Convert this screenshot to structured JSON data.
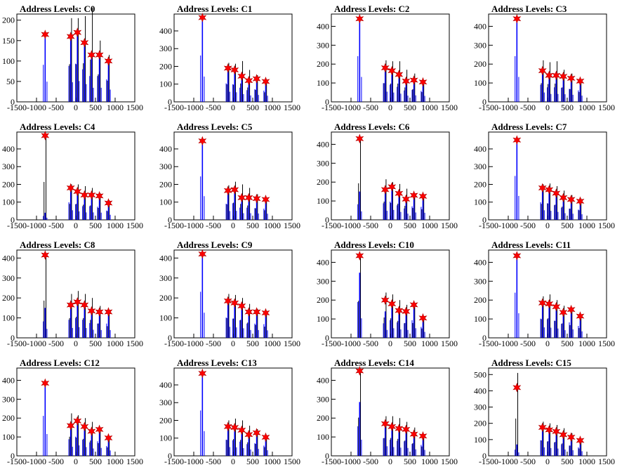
{
  "chart_data": [
    {
      "type": "histogram",
      "title": "Address Levels: C0",
      "xlim": [
        -1500,
        1500
      ],
      "ylim": [
        0,
        215
      ],
      "xticks": [
        -1500,
        -1000,
        -500,
        0,
        500,
        1000,
        1500
      ],
      "yticks": [
        0,
        50,
        100,
        150,
        200
      ],
      "peaks": [
        {
          "x": -780,
          "blue": 165,
          "black": 0,
          "star": 165
        },
        {
          "x": -130,
          "blue": 160,
          "black": 205,
          "star": 160
        },
        {
          "x": 40,
          "blue": 170,
          "black": 205,
          "star": 170
        },
        {
          "x": 220,
          "blue": 145,
          "black": 210,
          "star": 145
        },
        {
          "x": 400,
          "blue": 115,
          "black": 230,
          "star": 115
        },
        {
          "x": 600,
          "blue": 115,
          "black": 150,
          "star": 115
        },
        {
          "x": 830,
          "blue": 100,
          "black": 115,
          "star": 100
        }
      ]
    },
    {
      "type": "histogram",
      "title": "Address Levels: C1",
      "xlim": [
        -1500,
        1500
      ],
      "ylim": [
        0,
        495
      ],
      "xticks": [
        -1500,
        -1000,
        -500,
        0,
        500,
        1000,
        1500
      ],
      "yticks": [
        0,
        100,
        200,
        300,
        400
      ],
      "peaks": [
        {
          "x": -780,
          "blue": 475,
          "black": 0,
          "star": 475
        },
        {
          "x": -130,
          "blue": 190,
          "black": 220,
          "star": 190
        },
        {
          "x": 40,
          "blue": 180,
          "black": 215,
          "star": 180
        },
        {
          "x": 220,
          "blue": 145,
          "black": 230,
          "star": 145
        },
        {
          "x": 400,
          "blue": 120,
          "black": 180,
          "star": 120
        },
        {
          "x": 600,
          "blue": 130,
          "black": 150,
          "star": 130
        },
        {
          "x": 830,
          "blue": 115,
          "black": 120,
          "star": 115
        }
      ]
    },
    {
      "type": "histogram",
      "title": "Address Levels: C2",
      "xlim": [
        -1500,
        1500
      ],
      "ylim": [
        0,
        465
      ],
      "xticks": [
        -1500,
        -1000,
        -500,
        0,
        500,
        1000,
        1500
      ],
      "yticks": [
        0,
        100,
        200,
        300,
        400
      ],
      "peaks": [
        {
          "x": -780,
          "blue": 440,
          "black": 0,
          "star": 440
        },
        {
          "x": -130,
          "blue": 180,
          "black": 220,
          "star": 180
        },
        {
          "x": 40,
          "blue": 165,
          "black": 215,
          "star": 165
        },
        {
          "x": 220,
          "blue": 145,
          "black": 215,
          "star": 145
        },
        {
          "x": 400,
          "blue": 110,
          "black": 170,
          "star": 110
        },
        {
          "x": 600,
          "blue": 115,
          "black": 150,
          "star": 115
        },
        {
          "x": 830,
          "blue": 105,
          "black": 115,
          "star": 105
        }
      ]
    },
    {
      "type": "histogram",
      "title": "Address Levels: C3",
      "xlim": [
        -1500,
        1500
      ],
      "ylim": [
        0,
        465
      ],
      "xticks": [
        -1500,
        -1000,
        -500,
        0,
        500,
        1000,
        1500
      ],
      "yticks": [
        0,
        100,
        200,
        300,
        400
      ],
      "peaks": [
        {
          "x": -780,
          "blue": 440,
          "black": 0,
          "star": 440
        },
        {
          "x": -130,
          "blue": 165,
          "black": 220,
          "star": 165
        },
        {
          "x": 40,
          "blue": 140,
          "black": 210,
          "star": 140
        },
        {
          "x": 220,
          "blue": 140,
          "black": 215,
          "star": 140
        },
        {
          "x": 400,
          "blue": 135,
          "black": 170,
          "star": 135
        },
        {
          "x": 600,
          "blue": 125,
          "black": 150,
          "star": 125
        },
        {
          "x": 830,
          "blue": 110,
          "black": 115,
          "star": 110
        }
      ]
    },
    {
      "type": "histogram",
      "title": "Address Levels: C4",
      "xlim": [
        -1500,
        1500
      ],
      "ylim": [
        0,
        495
      ],
      "xticks": [
        -1500,
        -1000,
        -500,
        0,
        500,
        1000,
        1500
      ],
      "yticks": [
        0,
        100,
        200,
        300,
        400
      ],
      "peaks": [
        {
          "x": -780,
          "blue": 40,
          "black": 475,
          "star": 475
        },
        {
          "x": -130,
          "blue": 180,
          "black": 200,
          "star": 180
        },
        {
          "x": 40,
          "blue": 160,
          "black": 200,
          "star": 160
        },
        {
          "x": 220,
          "blue": 140,
          "black": 190,
          "star": 140
        },
        {
          "x": 400,
          "blue": 140,
          "black": 180,
          "star": 140
        },
        {
          "x": 600,
          "blue": 135,
          "black": 150,
          "star": 135
        },
        {
          "x": 830,
          "blue": 95,
          "black": 110,
          "star": 95
        }
      ]
    },
    {
      "type": "histogram",
      "title": "Address Levels: C5",
      "xlim": [
        -1500,
        1500
      ],
      "ylim": [
        0,
        495
      ],
      "xticks": [
        -1500,
        -1000,
        -500,
        0,
        500,
        1000,
        1500
      ],
      "yticks": [
        0,
        100,
        200,
        300,
        400
      ],
      "peaks": [
        {
          "x": -780,
          "blue": 445,
          "black": 0,
          "star": 445
        },
        {
          "x": -130,
          "blue": 165,
          "black": 195,
          "star": 165
        },
        {
          "x": 40,
          "blue": 170,
          "black": 215,
          "star": 170
        },
        {
          "x": 220,
          "blue": 125,
          "black": 200,
          "star": 125
        },
        {
          "x": 400,
          "blue": 125,
          "black": 180,
          "star": 125
        },
        {
          "x": 600,
          "blue": 120,
          "black": 145,
          "star": 120
        },
        {
          "x": 830,
          "blue": 115,
          "black": 120,
          "star": 115
        }
      ]
    },
    {
      "type": "histogram",
      "title": "Address Levels: C6",
      "xlim": [
        -1500,
        1500
      ],
      "ylim": [
        0,
        465
      ],
      "xticks": [
        -1500,
        -1000,
        -500,
        0,
        500,
        1000,
        1500
      ],
      "yticks": [
        0,
        100,
        200,
        300,
        400
      ],
      "peaks": [
        {
          "x": -780,
          "blue": 150,
          "black": 430,
          "star": 430
        },
        {
          "x": -130,
          "blue": 160,
          "black": 215,
          "star": 160
        },
        {
          "x": 40,
          "blue": 175,
          "black": 200,
          "star": 175
        },
        {
          "x": 220,
          "blue": 140,
          "black": 190,
          "star": 140
        },
        {
          "x": 400,
          "blue": 110,
          "black": 165,
          "star": 110
        },
        {
          "x": 600,
          "blue": 130,
          "black": 140,
          "star": 130
        },
        {
          "x": 830,
          "blue": 125,
          "black": 125,
          "star": 125
        }
      ]
    },
    {
      "type": "histogram",
      "title": "Address Levels: C7",
      "xlim": [
        -1500,
        1500
      ],
      "ylim": [
        0,
        495
      ],
      "xticks": [
        -1500,
        -1000,
        -500,
        0,
        500,
        1000,
        1500
      ],
      "yticks": [
        0,
        100,
        200,
        300,
        400
      ],
      "peaks": [
        {
          "x": -780,
          "blue": 450,
          "black": 0,
          "star": 450
        },
        {
          "x": -130,
          "blue": 180,
          "black": 200,
          "star": 180
        },
        {
          "x": 40,
          "blue": 170,
          "black": 205,
          "star": 170
        },
        {
          "x": 220,
          "blue": 150,
          "black": 190,
          "star": 150
        },
        {
          "x": 400,
          "blue": 125,
          "black": 165,
          "star": 125
        },
        {
          "x": 600,
          "blue": 115,
          "black": 140,
          "star": 115
        },
        {
          "x": 830,
          "blue": 105,
          "black": 120,
          "star": 105
        }
      ]
    },
    {
      "type": "histogram",
      "title": "Address Levels: C8",
      "xlim": [
        -1500,
        1500
      ],
      "ylim": [
        0,
        440
      ],
      "xticks": [
        -1500,
        -1000,
        -500,
        0,
        500,
        1000,
        1500
      ],
      "yticks": [
        0,
        100,
        200,
        300,
        400
      ],
      "peaks": [
        {
          "x": -780,
          "blue": 150,
          "black": 415,
          "star": 415
        },
        {
          "x": -130,
          "blue": 165,
          "black": 220,
          "star": 165
        },
        {
          "x": 40,
          "blue": 180,
          "black": 235,
          "star": 180
        },
        {
          "x": 220,
          "blue": 165,
          "black": 220,
          "star": 165
        },
        {
          "x": 400,
          "blue": 135,
          "black": 200,
          "star": 135
        },
        {
          "x": 600,
          "blue": 130,
          "black": 160,
          "star": 130
        },
        {
          "x": 830,
          "blue": 130,
          "black": 130,
          "star": 130
        }
      ]
    },
    {
      "type": "histogram",
      "title": "Address Levels: C9",
      "xlim": [
        -1500,
        1500
      ],
      "ylim": [
        0,
        440
      ],
      "xticks": [
        -1500,
        -1000,
        -500,
        0,
        500,
        1000,
        1500
      ],
      "yticks": [
        0,
        100,
        200,
        300,
        400
      ],
      "peaks": [
        {
          "x": -780,
          "blue": 420,
          "black": 0,
          "star": 420
        },
        {
          "x": -130,
          "blue": 185,
          "black": 220,
          "star": 185
        },
        {
          "x": 40,
          "blue": 175,
          "black": 215,
          "star": 175
        },
        {
          "x": 220,
          "blue": 160,
          "black": 200,
          "star": 160
        },
        {
          "x": 400,
          "blue": 130,
          "black": 170,
          "star": 130
        },
        {
          "x": 600,
          "blue": 130,
          "black": 145,
          "star": 130
        },
        {
          "x": 830,
          "blue": 125,
          "black": 125,
          "star": 125
        }
      ]
    },
    {
      "type": "histogram",
      "title": "Address Levels: C10",
      "xlim": [
        -1500,
        1500
      ],
      "ylim": [
        0,
        465
      ],
      "xticks": [
        -1500,
        -1000,
        -500,
        0,
        500,
        1000,
        1500
      ],
      "yticks": [
        0,
        100,
        200,
        300,
        400
      ],
      "peaks": [
        {
          "x": -780,
          "blue": 345,
          "black": 435,
          "star": 435
        },
        {
          "x": -130,
          "blue": 140,
          "black": 240,
          "star": 200
        },
        {
          "x": 40,
          "blue": 170,
          "black": 230,
          "star": 180
        },
        {
          "x": 220,
          "blue": 150,
          "black": 200,
          "star": 145
        },
        {
          "x": 400,
          "blue": 140,
          "black": 175,
          "star": 140
        },
        {
          "x": 600,
          "blue": 170,
          "black": 175,
          "star": 175
        },
        {
          "x": 830,
          "blue": 105,
          "black": 110,
          "star": 105
        }
      ]
    },
    {
      "type": "histogram",
      "title": "Address Levels: C11",
      "xlim": [
        -1500,
        1500
      ],
      "ylim": [
        0,
        465
      ],
      "xticks": [
        -1500,
        -1000,
        -500,
        0,
        500,
        1000,
        1500
      ],
      "yticks": [
        0,
        100,
        200,
        300,
        400
      ],
      "peaks": [
        {
          "x": -780,
          "blue": 435,
          "black": 0,
          "star": 435
        },
        {
          "x": -130,
          "blue": 185,
          "black": 220,
          "star": 185
        },
        {
          "x": 40,
          "blue": 180,
          "black": 230,
          "star": 180
        },
        {
          "x": 220,
          "blue": 165,
          "black": 200,
          "star": 165
        },
        {
          "x": 400,
          "blue": 135,
          "black": 170,
          "star": 135
        },
        {
          "x": 600,
          "blue": 150,
          "black": 150,
          "star": 150
        },
        {
          "x": 830,
          "blue": 115,
          "black": 115,
          "star": 115
        }
      ]
    },
    {
      "type": "histogram",
      "title": "Address Levels: C12",
      "xlim": [
        -1500,
        1500
      ],
      "ylim": [
        0,
        465
      ],
      "xticks": [
        -1500,
        -1000,
        -500,
        0,
        500,
        1000,
        1500
      ],
      "yticks": [
        0,
        100,
        200,
        300,
        400
      ],
      "peaks": [
        {
          "x": -780,
          "blue": 385,
          "black": 0,
          "star": 385
        },
        {
          "x": -130,
          "blue": 160,
          "black": 225,
          "star": 160
        },
        {
          "x": 40,
          "blue": 185,
          "black": 215,
          "star": 185
        },
        {
          "x": 220,
          "blue": 155,
          "black": 200,
          "star": 155
        },
        {
          "x": 400,
          "blue": 130,
          "black": 180,
          "star": 130
        },
        {
          "x": 600,
          "blue": 140,
          "black": 150,
          "star": 140
        },
        {
          "x": 830,
          "blue": 95,
          "black": 100,
          "star": 95
        }
      ]
    },
    {
      "type": "histogram",
      "title": "Address Levels: C13",
      "xlim": [
        -1500,
        1500
      ],
      "ylim": [
        0,
        495
      ],
      "xticks": [
        -1500,
        -1000,
        -500,
        0,
        500,
        1000,
        1500
      ],
      "yticks": [
        0,
        100,
        200,
        300,
        400
      ],
      "peaks": [
        {
          "x": -780,
          "blue": 465,
          "black": 0,
          "star": 465
        },
        {
          "x": -130,
          "blue": 165,
          "black": 200,
          "star": 165
        },
        {
          "x": 40,
          "blue": 160,
          "black": 210,
          "star": 160
        },
        {
          "x": 220,
          "blue": 145,
          "black": 200,
          "star": 145
        },
        {
          "x": 400,
          "blue": 120,
          "black": 170,
          "star": 120
        },
        {
          "x": 600,
          "blue": 130,
          "black": 150,
          "star": 130
        },
        {
          "x": 830,
          "blue": 105,
          "black": 110,
          "star": 105
        }
      ]
    },
    {
      "type": "histogram",
      "title": "Address Levels: C14",
      "xlim": [
        -1500,
        1500
      ],
      "ylim": [
        0,
        465
      ],
      "xticks": [
        -1500,
        -1000,
        -500,
        0,
        500,
        1000,
        1500
      ],
      "yticks": [
        0,
        100,
        200,
        300,
        400
      ],
      "peaks": [
        {
          "x": -780,
          "blue": 285,
          "black": 450,
          "star": 450
        },
        {
          "x": -130,
          "blue": 170,
          "black": 210,
          "star": 170
        },
        {
          "x": 40,
          "blue": 155,
          "black": 210,
          "star": 155
        },
        {
          "x": 220,
          "blue": 145,
          "black": 200,
          "star": 145
        },
        {
          "x": 400,
          "blue": 140,
          "black": 180,
          "star": 140
        },
        {
          "x": 600,
          "blue": 115,
          "black": 150,
          "star": 115
        },
        {
          "x": 830,
          "blue": 105,
          "black": 110,
          "star": 105
        }
      ]
    },
    {
      "type": "histogram",
      "title": "Address Levels: C15",
      "xlim": [
        -1500,
        1500
      ],
      "ylim": [
        0,
        540
      ],
      "xticks": [
        -1500,
        -1000,
        -500,
        0,
        500,
        1000,
        1500
      ],
      "yticks": [
        0,
        100,
        200,
        300,
        400,
        500
      ],
      "peaks": [
        {
          "x": -780,
          "blue": 70,
          "black": 510,
          "star": 420
        },
        {
          "x": -130,
          "blue": 175,
          "black": 210,
          "star": 175
        },
        {
          "x": 40,
          "blue": 160,
          "black": 200,
          "star": 160
        },
        {
          "x": 220,
          "blue": 150,
          "black": 190,
          "star": 150
        },
        {
          "x": 400,
          "blue": 130,
          "black": 170,
          "star": 130
        },
        {
          "x": 600,
          "blue": 115,
          "black": 140,
          "star": 115
        },
        {
          "x": 830,
          "blue": 95,
          "black": 100,
          "star": 95
        }
      ]
    }
  ],
  "colors": {
    "series_blue": "#0000ff",
    "series_black": "#000000",
    "marker": "#ff0000",
    "marker_edge": "#b00000"
  }
}
